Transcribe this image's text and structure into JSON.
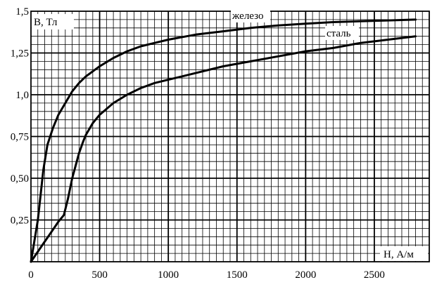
{
  "chart_data": {
    "type": "line",
    "title": "",
    "xlabel": "H, А/м",
    "ylabel": "B, Тл",
    "xlim": [
      0,
      2900
    ],
    "ylim": [
      0,
      1.5
    ],
    "x_ticks": [
      0,
      500,
      1000,
      1500,
      2000,
      2500
    ],
    "x_tick_labels": [
      "0",
      "500",
      "1000",
      "1500",
      "2000",
      "2500"
    ],
    "y_ticks": [
      0.25,
      0.5,
      0.75,
      1.0,
      1.25,
      1.5
    ],
    "y_tick_labels": [
      "0,25",
      "0,50",
      "0,75",
      "1,0",
      "1,25",
      "1,5"
    ],
    "grid": true,
    "minor_grid": {
      "x_step": 50,
      "y_step": 0.05
    },
    "series": [
      {
        "name": "железо",
        "x": [
          0,
          50,
          90,
          120,
          160,
          200,
          250,
          300,
          350,
          400,
          450,
          500,
          600,
          700,
          800,
          900,
          1000,
          1200,
          1400,
          1600,
          1800,
          2000,
          2200,
          2400,
          2600,
          2800
        ],
        "y": [
          0,
          0.25,
          0.55,
          0.7,
          0.8,
          0.88,
          0.95,
          1.02,
          1.07,
          1.11,
          1.14,
          1.17,
          1.22,
          1.26,
          1.29,
          1.31,
          1.33,
          1.36,
          1.38,
          1.4,
          1.415,
          1.425,
          1.435,
          1.44,
          1.445,
          1.45
        ]
      },
      {
        "name": "сталь",
        "x": [
          0,
          100,
          150,
          200,
          240,
          270,
          300,
          320,
          350,
          380,
          400,
          450,
          500,
          600,
          700,
          800,
          900,
          1000,
          1200,
          1400,
          1600,
          1800,
          2000,
          2200,
          2400,
          2600,
          2800
        ],
        "y": [
          0,
          0.12,
          0.18,
          0.24,
          0.28,
          0.38,
          0.5,
          0.56,
          0.65,
          0.72,
          0.76,
          0.83,
          0.88,
          0.95,
          1.0,
          1.04,
          1.07,
          1.09,
          1.13,
          1.17,
          1.2,
          1.23,
          1.26,
          1.28,
          1.31,
          1.33,
          1.35
        ]
      }
    ],
    "annotations": [
      "железо",
      "сталь"
    ]
  }
}
